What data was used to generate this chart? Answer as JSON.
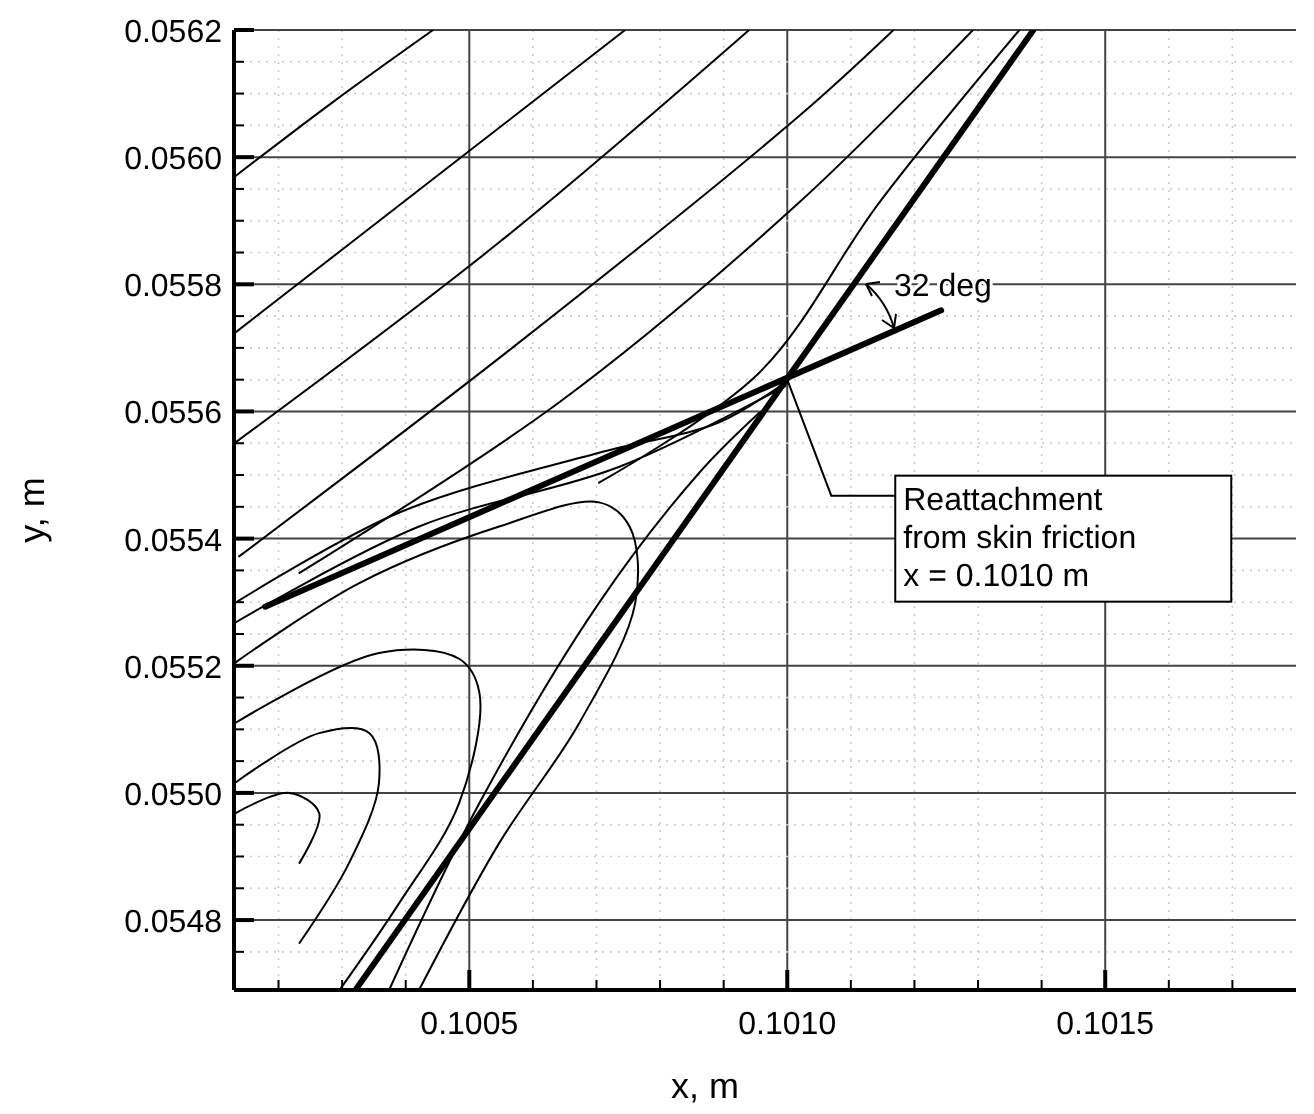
{
  "chart_data": {
    "type": "line",
    "xlabel": "x, m",
    "ylabel": "y, m",
    "xlim": [
      0.10013,
      0.1018
    ],
    "ylim": [
      0.05469,
      0.0562
    ],
    "xticks": [
      {
        "value": 0.1002,
        "label": null
      },
      {
        "value": 0.1003,
        "label": null
      },
      {
        "value": 0.1004,
        "label": null
      },
      0.1005,
      {
        "value": 0.1006,
        "label": null
      },
      {
        "value": 0.1007,
        "label": null
      },
      {
        "value": 0.1008,
        "label": null
      },
      {
        "value": 0.1009,
        "label": null
      },
      {
        "value": 0.101,
        "label": "0.1010"
      },
      {
        "value": 0.1011,
        "label": null
      },
      {
        "value": 0.1012,
        "label": null
      },
      {
        "value": 0.1013,
        "label": null
      },
      {
        "value": 0.1014,
        "label": null
      },
      0.1015,
      {
        "value": 0.1016,
        "label": null
      },
      {
        "value": 0.1017,
        "label": null
      }
    ],
    "yticks": [
      {
        "value": 0.05475,
        "label": null
      },
      0.0548,
      {
        "value": 0.05485,
        "label": null
      },
      {
        "value": 0.0549,
        "label": null
      },
      {
        "value": 0.05495,
        "label": null
      },
      {
        "value": 0.055,
        "label": "0.0550"
      },
      {
        "value": 0.05505,
        "label": null
      },
      {
        "value": 0.0551,
        "label": null
      },
      {
        "value": 0.05515,
        "label": null
      },
      0.0552,
      {
        "value": 0.05525,
        "label": null
      },
      {
        "value": 0.0553,
        "label": null
      },
      {
        "value": 0.05535,
        "label": null
      },
      0.0554,
      {
        "value": 0.05545,
        "label": null
      },
      {
        "value": 0.0555,
        "label": null
      },
      {
        "value": 0.05555,
        "label": null
      },
      0.0556,
      {
        "value": 0.05565,
        "label": null
      },
      {
        "value": 0.0557,
        "label": null
      },
      {
        "value": 0.05575,
        "label": null
      },
      0.0558,
      {
        "value": 0.05585,
        "label": null
      },
      {
        "value": 0.0559,
        "label": null
      },
      {
        "value": 0.05595,
        "label": null
      },
      {
        "value": 0.056,
        "label": "0.0560"
      },
      {
        "value": 0.05605,
        "label": null
      },
      {
        "value": 0.0561,
        "label": null
      },
      {
        "value": 0.05615,
        "label": null
      },
      0.0562
    ],
    "grid": true,
    "line_style": "solid",
    "marker": "none",
    "series": [
      {
        "color": "#000000",
        "x": [
          0.100321,
          0.101387
        ],
        "values": [
          0.05469,
          0.0562
        ]
      },
      {
        "color": "#000000",
        "x": [
          0.100179,
          0.101242
        ],
        "values": [
          0.055293,
          0.055759
        ]
      },
      {
        "color": "#000000",
        "x": [
          0.100132,
          0.100286,
          0.100443
        ],
        "values": [
          0.05597,
          0.056087,
          0.0562
        ]
      },
      {
        "color": "#000000",
        "x": [
          0.100132,
          0.100437,
          0.100745
        ],
        "values": [
          0.055724,
          0.055961,
          0.0562
        ]
      },
      {
        "color": "#000000",
        "x": [
          0.100132,
          0.100547,
          0.10094
        ],
        "values": [
          0.055551,
          0.055866,
          0.0562
        ]
      },
      {
        "color": "#000000",
        "x": [
          0.100138,
          0.100579,
          0.101019,
          0.101167
        ],
        "values": [
          0.055372,
          0.055709,
          0.056065,
          0.0562
        ]
      },
      {
        "color": "#000000",
        "x": [
          0.100233,
          0.100641,
          0.101019,
          0.101292
        ],
        "values": [
          0.055346,
          0.055614,
          0.055929,
          0.0562
        ]
      },
      {
        "color": "#000000",
        "x": [
          0.100704,
          0.100956,
          0.101145,
          0.101365
        ],
        "values": [
          0.055488,
          0.055661,
          0.055929,
          0.0562
        ]
      },
      {
        "color": "#000000",
        "x": [
          0.100132,
          0.10039,
          0.100704,
          0.100893,
          0.100997
        ],
        "values": [
          0.055299,
          0.055441,
          0.055535,
          0.055583,
          0.055646
        ]
      },
      {
        "color": "#000000",
        "x": [
          0.100132,
          0.100421,
          0.100736,
          0.100997
        ],
        "values": [
          0.055268,
          0.055419,
          0.055513,
          0.05564
        ]
      },
      {
        "color": "#000000",
        "x": [
          0.100132,
          0.100327,
          0.100547,
          0.100704,
          0.100752,
          0.100761,
          0.100673,
          0.100547,
          0.100421
        ],
        "values": [
          0.055205,
          0.05533,
          0.055419,
          0.055457,
          0.055419,
          0.055299,
          0.05511,
          0.054921,
          0.05469
        ]
      },
      {
        "color": "#000000",
        "x": [
          0.100132,
          0.100358,
          0.100484,
          0.100516,
          0.100484,
          0.10039,
          0.100296
        ],
        "values": [
          0.05511,
          0.05522,
          0.055211,
          0.055157,
          0.054984,
          0.054827,
          0.05469
        ]
      },
      {
        "color": "#000000",
        "x": [
          0.100132,
          0.100264,
          0.100343,
          0.100358,
          0.100311,
          0.100233
        ],
        "values": [
          0.055016,
          0.055094,
          0.055094,
          0.055016,
          0.05489,
          0.054764
        ]
      },
      {
        "color": "#000000",
        "x": [
          0.100132,
          0.100217,
          0.100264,
          0.100233
        ],
        "values": [
          0.054968,
          0.055,
          0.054968,
          0.05489
        ]
      },
      {
        "color": "#000000",
        "x": [
          0.100956,
          0.100862,
          0.100704,
          0.100516,
          0.100374
        ],
        "values": [
          0.055598,
          0.055504,
          0.055299,
          0.054984,
          0.05469
        ]
      }
    ],
    "annotations": [
      "32 deg",
      {
        "text": "Reattachment\nfrom skin friction\nx = 0.1010 m",
        "x": 0.101,
        "y": 0.05565
      }
    ]
  }
}
